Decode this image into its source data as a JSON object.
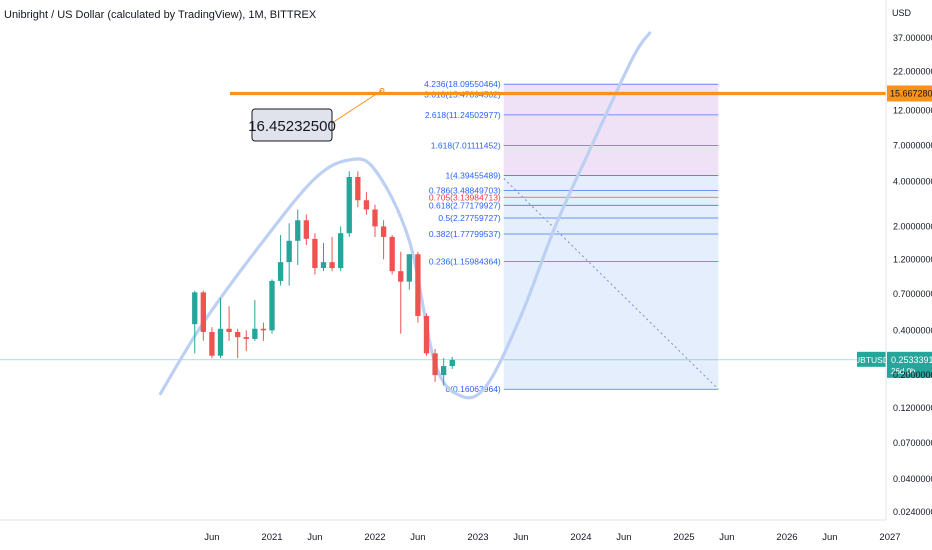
{
  "header": {
    "title": "Unibright / US Dollar (calculated by TradingView), 1M, BITTREX"
  },
  "chart_data": {
    "type": "candlestick",
    "symbol": "UBTUSD",
    "interval": "1M",
    "exchange": "BITTREX",
    "y_unit": "USD",
    "y_scale": "log",
    "ylim": [
      0.022,
      45
    ],
    "y_ticks": [
      "37.00000000",
      "22.00000000",
      "12.00000000",
      "7.00000000",
      "4.00000000",
      "2.00000000",
      "1.20000000",
      "0.70000000",
      "0.40000000",
      "0.20000000",
      "0.12000000",
      "0.07000000",
      "0.04000000",
      "0.02400000"
    ],
    "x_ticks": [
      "Jun",
      "2021",
      "Jun",
      "2022",
      "Jun",
      "2023",
      "Jun",
      "2024",
      "Jun",
      "2025",
      "Jun",
      "2026",
      "Jun",
      "2027"
    ],
    "x_tick_dates": [
      "2020-06",
      "2021-01",
      "2021-06",
      "2022-01",
      "2022-06",
      "2023-01",
      "2023-06",
      "2024-01",
      "2024-06",
      "2025-01",
      "2025-06",
      "2026-01",
      "2026-06",
      "2027-01"
    ],
    "candles": [
      {
        "date": "2020-04",
        "open": 0.44,
        "high": 0.74,
        "low": 0.28,
        "close": 0.72
      },
      {
        "date": "2020-05",
        "open": 0.72,
        "high": 0.74,
        "low": 0.34,
        "close": 0.39
      },
      {
        "date": "2020-06",
        "open": 0.39,
        "high": 0.42,
        "low": 0.26,
        "close": 0.27
      },
      {
        "date": "2020-07",
        "open": 0.27,
        "high": 0.66,
        "low": 0.26,
        "close": 0.41
      },
      {
        "date": "2020-08",
        "open": 0.41,
        "high": 0.58,
        "low": 0.34,
        "close": 0.39
      },
      {
        "date": "2020-09",
        "open": 0.39,
        "high": 0.41,
        "low": 0.26,
        "close": 0.36
      },
      {
        "date": "2020-10",
        "open": 0.36,
        "high": 0.4,
        "low": 0.29,
        "close": 0.35
      },
      {
        "date": "2020-11",
        "open": 0.35,
        "high": 0.64,
        "low": 0.34,
        "close": 0.41
      },
      {
        "date": "2020-12",
        "open": 0.41,
        "high": 0.45,
        "low": 0.34,
        "close": 0.4
      },
      {
        "date": "2021-01",
        "open": 0.4,
        "high": 0.88,
        "low": 0.38,
        "close": 0.86
      },
      {
        "date": "2021-02",
        "open": 0.86,
        "high": 1.75,
        "low": 0.8,
        "close": 1.15
      },
      {
        "date": "2021-03",
        "open": 1.15,
        "high": 2.1,
        "low": 0.8,
        "close": 1.6
      },
      {
        "date": "2021-04",
        "open": 1.6,
        "high": 2.6,
        "low": 1.1,
        "close": 2.2
      },
      {
        "date": "2021-05",
        "open": 2.2,
        "high": 2.4,
        "low": 1.5,
        "close": 1.65
      },
      {
        "date": "2021-06",
        "open": 1.65,
        "high": 1.8,
        "low": 0.95,
        "close": 1.05
      },
      {
        "date": "2021-07",
        "open": 1.05,
        "high": 1.55,
        "low": 1.0,
        "close": 1.15
      },
      {
        "date": "2021-08",
        "open": 1.15,
        "high": 1.7,
        "low": 1.0,
        "close": 1.05
      },
      {
        "date": "2021-09",
        "open": 1.05,
        "high": 2.0,
        "low": 1.0,
        "close": 1.8
      },
      {
        "date": "2021-10",
        "open": 1.8,
        "high": 4.7,
        "low": 1.7,
        "close": 4.3
      },
      {
        "date": "2021-11",
        "open": 4.3,
        "high": 4.7,
        "low": 2.7,
        "close": 3.0
      },
      {
        "date": "2021-12",
        "open": 3.0,
        "high": 3.4,
        "low": 2.4,
        "close": 2.6
      },
      {
        "date": "2022-01",
        "open": 2.6,
        "high": 2.8,
        "low": 1.7,
        "close": 2.0
      },
      {
        "date": "2022-02",
        "open": 2.0,
        "high": 2.2,
        "low": 1.2,
        "close": 1.7
      },
      {
        "date": "2022-03",
        "open": 1.7,
        "high": 1.75,
        "low": 0.95,
        "close": 1.0
      },
      {
        "date": "2022-04",
        "open": 1.0,
        "high": 1.35,
        "low": 0.38,
        "close": 0.85
      },
      {
        "date": "2022-05",
        "open": 0.85,
        "high": 1.3,
        "low": 0.75,
        "close": 1.3
      },
      {
        "date": "2022-06",
        "open": 1.3,
        "high": 1.35,
        "low": 0.45,
        "close": 0.5
      },
      {
        "date": "2022-07",
        "open": 0.5,
        "high": 0.52,
        "low": 0.27,
        "close": 0.28
      },
      {
        "date": "2022-08",
        "open": 0.28,
        "high": 0.3,
        "low": 0.18,
        "close": 0.2
      },
      {
        "date": "2022-09",
        "open": 0.2,
        "high": 0.26,
        "low": 0.17,
        "close": 0.23
      },
      {
        "date": "2022-10",
        "open": 0.23,
        "high": 0.265,
        "low": 0.22,
        "close": 0.253
      }
    ],
    "last_price": "0.25333915",
    "countdown": "26d 0h",
    "horizontal_line": {
      "value": 15.66728068,
      "label": "15.66728068"
    },
    "callout": {
      "value": 16.452325,
      "label": "16.45232500"
    },
    "fibonacci": {
      "levels": [
        {
          "label": "4.236(18.09550464)",
          "ratio": 4.236,
          "value": 18.09550464
        },
        {
          "label": "3.618(15.47894502)",
          "ratio": 3.618,
          "value": 15.47894502
        },
        {
          "label": "2.618(11.24502977)",
          "ratio": 2.618,
          "value": 11.24502977
        },
        {
          "label": "1.618(7.01111452)",
          "ratio": 1.618,
          "value": 7.01111452
        },
        {
          "label": "1(4.39455489)",
          "ratio": 1,
          "value": 4.39455489
        },
        {
          "label": "0.786(3.48849703)",
          "ratio": 0.786,
          "value": 3.48849703
        },
        {
          "label": "0.705(3.13984713)",
          "ratio": 0.705,
          "value": 3.13984713
        },
        {
          "label": "0.618(2.77179927)",
          "ratio": 0.618,
          "value": 2.77179927
        },
        {
          "label": "0.5(2.27759727)",
          "ratio": 0.5,
          "value": 2.27759727
        },
        {
          "label": "0.382(1.77799537)",
          "ratio": 0.382,
          "value": 1.77799537
        },
        {
          "label": "0.236(1.15984364)",
          "ratio": 0.236,
          "value": 1.15984364
        },
        {
          "label": "0(0.16063964)",
          "ratio": 0,
          "value": 0.16063964
        }
      ],
      "start_date": "2023-04",
      "end_date": "2025-05"
    },
    "curve": [
      {
        "date": "2019-12",
        "value": 0.15
      },
      {
        "date": "2020-05",
        "value": 0.45
      },
      {
        "date": "2020-12",
        "value": 1.6
      },
      {
        "date": "2021-06",
        "value": 4.2
      },
      {
        "date": "2021-10",
        "value": 5.6
      },
      {
        "date": "2022-01",
        "value": 4.8
      },
      {
        "date": "2022-05",
        "value": 1.6
      },
      {
        "date": "2022-08",
        "value": 0.24
      },
      {
        "date": "2022-11",
        "value": 0.145
      },
      {
        "date": "2023-02",
        "value": 0.17
      },
      {
        "date": "2023-06",
        "value": 0.5
      },
      {
        "date": "2023-10",
        "value": 2.0
      },
      {
        "date": "2024-02",
        "value": 6.5
      },
      {
        "date": "2024-07",
        "value": 27
      },
      {
        "date": "2024-09",
        "value": 40
      }
    ],
    "colors": {
      "up": "#26a69a",
      "down": "#ef5350",
      "orange": "#f7931a",
      "fib_blue": "#2962ff",
      "fib_red": "#f23645",
      "curve": "#bdd0f3",
      "last_price_bg": "#26a69a"
    }
  }
}
